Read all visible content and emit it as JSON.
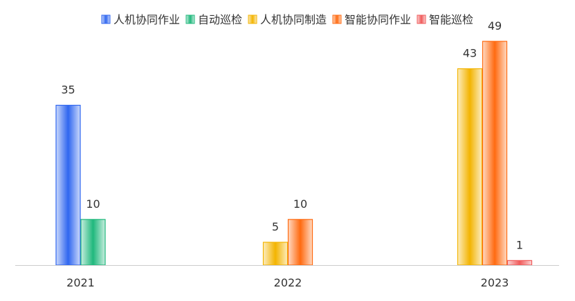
{
  "chart_data": {
    "type": "bar",
    "title": "",
    "xlabel": "",
    "ylabel": "",
    "categories": [
      "2021",
      "2022",
      "2023"
    ],
    "ylim": [
      0,
      52
    ],
    "grid": false,
    "legend_position": "top-center",
    "series": [
      {
        "name": "人机协同作业",
        "color": "#2f66f0",
        "values": [
          35,
          null,
          null
        ]
      },
      {
        "name": "自动巡检",
        "color": "#1fb87c",
        "values": [
          10,
          null,
          null
        ]
      },
      {
        "name": "人机协同制造",
        "color": "#f3b400",
        "values": [
          null,
          5,
          43
        ]
      },
      {
        "name": "智能协同作业",
        "color": "#ff6a10",
        "values": [
          null,
          10,
          49
        ]
      },
      {
        "name": "智能巡检",
        "color": "#f05a5a",
        "values": [
          null,
          null,
          1
        ]
      }
    ]
  }
}
